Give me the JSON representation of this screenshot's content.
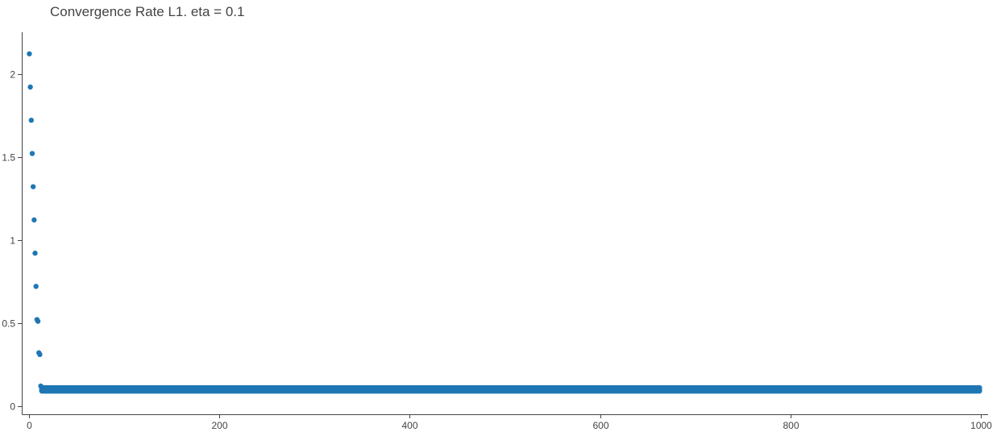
{
  "chart_data": {
    "type": "scatter",
    "title": "Convergence Rate L1. eta = 0.1",
    "xlabel": "",
    "ylabel": "",
    "xlim": [
      -8,
      1008
    ],
    "ylim": [
      -0.05,
      2.25
    ],
    "grid": false,
    "legend": "none",
    "marker_color": "#1f77b4",
    "x_ticks": [
      {
        "value": 0,
        "label": "0"
      },
      {
        "value": 200,
        "label": "200"
      },
      {
        "value": 400,
        "label": "400"
      },
      {
        "value": 600,
        "label": "600"
      },
      {
        "value": 800,
        "label": "800"
      },
      {
        "value": 1000,
        "label": "1000"
      }
    ],
    "y_ticks": [
      {
        "value": 0,
        "label": "0"
      },
      {
        "value": 0.5,
        "label": "0.5"
      },
      {
        "value": 1,
        "label": "1"
      },
      {
        "value": 1.5,
        "label": "1.5"
      },
      {
        "value": 2,
        "label": "2"
      }
    ],
    "series": [
      {
        "x": [
          0,
          1,
          2,
          3,
          4,
          5,
          6,
          7,
          8,
          9,
          10,
          11,
          12
        ],
        "y": [
          2.12,
          1.92,
          1.72,
          1.52,
          1.32,
          1.12,
          0.92,
          0.72,
          0.52,
          0.51,
          0.32,
          0.31,
          0.12
        ]
      },
      {
        "x_start": 13,
        "x_end": 999,
        "y_values": [
          0.11,
          0.1,
          0.09
        ]
      }
    ]
  }
}
